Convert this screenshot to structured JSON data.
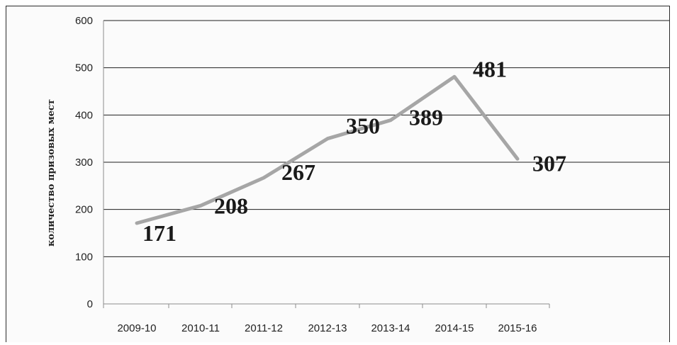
{
  "chart_data": {
    "type": "line",
    "categories": [
      "2009-10",
      "2010-11",
      "2011-12",
      "2012-13",
      "2013-14",
      "2014-15",
      "2015-16"
    ],
    "values": [
      171,
      208,
      267,
      350,
      389,
      481,
      307
    ],
    "ylabel": "количество призовых мест",
    "xlabel": "",
    "title": "",
    "ylim": [
      0,
      600
    ],
    "yticks": [
      0,
      100,
      200,
      300,
      400,
      500,
      600
    ],
    "grid": true,
    "line_color": "#a6a6a6",
    "data_labels": true
  }
}
